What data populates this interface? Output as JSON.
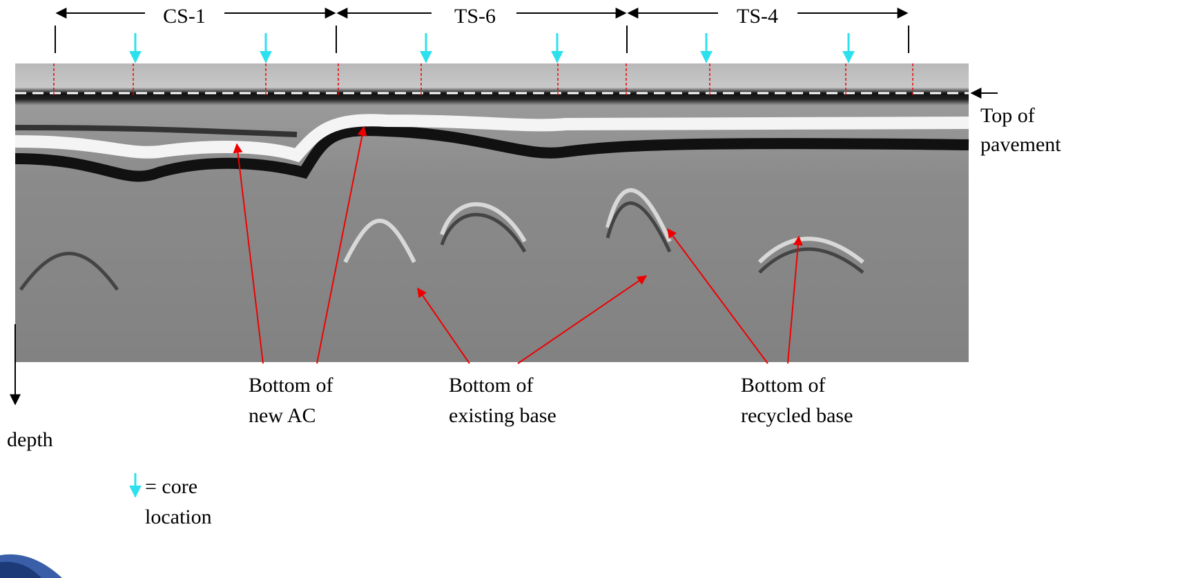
{
  "sections": [
    "CS-1",
    "TS-6",
    "TS-4"
  ],
  "annotations": {
    "top_of_pavement": [
      "Top of",
      "pavement"
    ],
    "bottom_new_ac": [
      "Bottom of",
      "new AC"
    ],
    "bottom_existing_base": [
      "Bottom of",
      "existing base"
    ],
    "bottom_recycled_base": [
      "Bottom of",
      "recycled base"
    ]
  },
  "depth_label": "depth",
  "legend": [
    "= core",
    "location"
  ]
}
